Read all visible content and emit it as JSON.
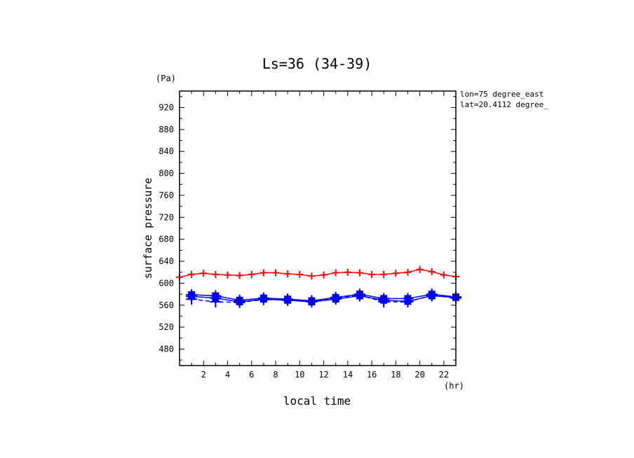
{
  "chart_data": {
    "type": "line",
    "title": "Ls=36 (34-39)",
    "xlabel": "local time",
    "ylabel": "surface pressure",
    "x_unit": "(hr)",
    "y_unit": "(Pa)",
    "annotations": [
      "lon=75 degree_east",
      "lat=20.4112 degree_"
    ],
    "xlim": [
      0,
      23
    ],
    "ylim": [
      450,
      950
    ],
    "x_ticks": [
      2,
      4,
      6,
      8,
      10,
      12,
      14,
      16,
      18,
      20,
      22
    ],
    "y_ticks": [
      480,
      520,
      560,
      600,
      640,
      680,
      720,
      760,
      800,
      840,
      880,
      920
    ],
    "grid": false,
    "series": [
      {
        "color": "#ff0000",
        "style": "solid",
        "marker": "plus",
        "marker_size": 5,
        "x": [
          0,
          1,
          2,
          3,
          4,
          5,
          6,
          7,
          8,
          9,
          10,
          11,
          12,
          13,
          14,
          15,
          16,
          17,
          18,
          19,
          20,
          21,
          22,
          23
        ],
        "y": [
          611,
          616,
          618,
          616,
          615,
          614,
          616,
          619,
          619,
          617,
          616,
          613,
          615,
          619,
          620,
          619,
          616,
          616,
          618,
          620,
          625,
          621,
          615,
          612
        ]
      },
      {
        "color": "#0000ff",
        "style": "solid",
        "marker": "square-plus",
        "marker_size": 5,
        "x": [
          1,
          3,
          5,
          7,
          9,
          11,
          13,
          15,
          17,
          19,
          21,
          23
        ],
        "y": [
          579,
          577,
          569,
          573,
          571,
          568,
          574,
          580,
          572,
          572,
          580,
          575
        ]
      },
      {
        "color": "#0000ff",
        "style": "solid",
        "marker": "square-plus",
        "marker_size": 5,
        "x": [
          1,
          3,
          5,
          7,
          9,
          11,
          13,
          15,
          17,
          19,
          21,
          23
        ],
        "y": [
          576,
          573,
          566,
          571,
          569,
          566,
          571,
          577,
          569,
          567,
          577,
          574
        ]
      },
      {
        "color": "#0000ff",
        "style": "dashed",
        "marker": "plus",
        "marker_size": 8,
        "x": [
          1,
          3,
          5,
          7,
          9,
          11,
          13,
          15,
          17,
          19,
          21,
          23
        ],
        "y": [
          571,
          566,
          565,
          570,
          570,
          567,
          573,
          578,
          566,
          566,
          578,
          573
        ]
      }
    ]
  }
}
